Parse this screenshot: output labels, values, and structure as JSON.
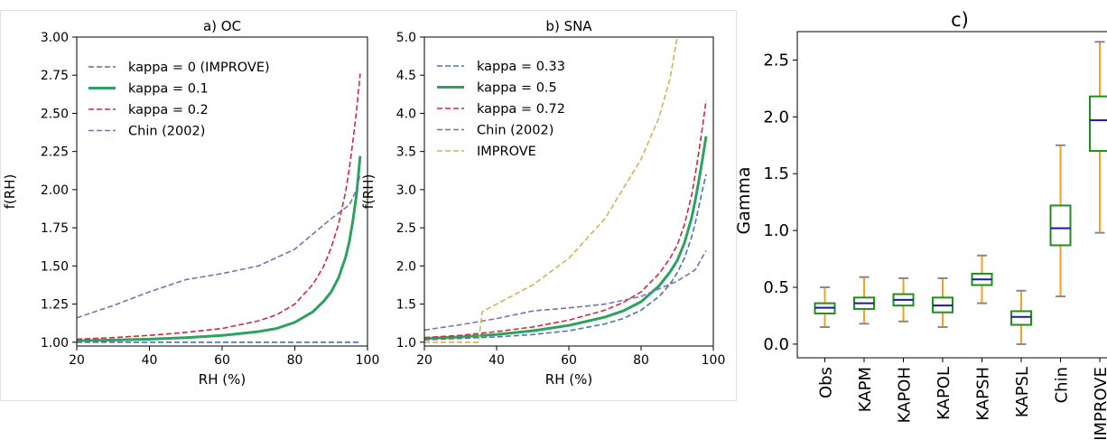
{
  "colors": {
    "blue": "#4c72b0",
    "green": "#2ca25f",
    "red": "#d62739",
    "purple": "#7b6fb5",
    "gold": "#d4b25c",
    "box": "#1e8f1e",
    "median": "#1a1a99",
    "whisker": "#f5a01e",
    "cap": "#888888"
  },
  "chart_data": [
    {
      "type": "line",
      "title": "a) OC",
      "xlabel": "RH (%)",
      "ylabel": "f(RH)",
      "xlim": [
        20,
        100
      ],
      "ylim": [
        0.975,
        3.0
      ],
      "xticks": [
        20,
        40,
        60,
        80,
        100
      ],
      "xtick_labels": [
        "20",
        "40",
        "60",
        "80",
        "100"
      ],
      "yticks": [
        1.0,
        1.25,
        1.5,
        1.75,
        2.0,
        2.25,
        2.5,
        2.75,
        3.0
      ],
      "ytick_labels": [
        "1.00",
        "1.25",
        "1.50",
        "1.75",
        "2.00",
        "2.25",
        "2.50",
        "2.75",
        "3.00"
      ],
      "grid": false,
      "legend_position": "top-left",
      "series": [
        {
          "name": "kappa = 0 (IMPROVE)",
          "color": "blue",
          "style": "dashed",
          "x": [
            20,
            98
          ],
          "y": [
            1.0,
            1.0
          ]
        },
        {
          "name": "kappa = 0.1",
          "color": "green",
          "style": "solid",
          "x": [
            20,
            30,
            40,
            50,
            60,
            70,
            75,
            80,
            85,
            88,
            90,
            92,
            94,
            95,
            96,
            97,
            98
          ],
          "y": [
            1.01,
            1.014,
            1.02,
            1.03,
            1.044,
            1.07,
            1.09,
            1.13,
            1.2,
            1.27,
            1.33,
            1.42,
            1.56,
            1.66,
            1.8,
            1.97,
            2.22
          ]
        },
        {
          "name": "kappa = 0.2",
          "color": "red",
          "style": "dashed",
          "x": [
            20,
            30,
            40,
            50,
            60,
            70,
            75,
            80,
            85,
            88,
            90,
            92,
            94,
            95,
            96,
            97,
            98
          ],
          "y": [
            1.02,
            1.03,
            1.045,
            1.065,
            1.09,
            1.14,
            1.18,
            1.25,
            1.38,
            1.5,
            1.62,
            1.77,
            1.99,
            2.14,
            2.32,
            2.52,
            2.76
          ]
        },
        {
          "name": "Chin (2002)",
          "color": "purple",
          "style": "dashed",
          "x": [
            20,
            30,
            40,
            50,
            60,
            70,
            80,
            90,
            95,
            97,
            98
          ],
          "y": [
            1.16,
            1.24,
            1.33,
            1.41,
            1.45,
            1.5,
            1.61,
            1.81,
            1.9,
            2.0,
            2.1
          ]
        }
      ]
    },
    {
      "type": "line",
      "title": "b) SNA",
      "xlabel": "RH (%)",
      "ylabel": "f(RH)",
      "xlim": [
        20,
        100
      ],
      "ylim": [
        0.95,
        5.0
      ],
      "xticks": [
        20,
        40,
        60,
        80,
        100
      ],
      "xtick_labels": [
        "20",
        "40",
        "60",
        "80",
        "100"
      ],
      "yticks": [
        1.0,
        1.5,
        2.0,
        2.5,
        3.0,
        3.5,
        4.0,
        4.5,
        5.0
      ],
      "ytick_labels": [
        "1.0",
        "1.5",
        "2.0",
        "2.5",
        "3.0",
        "3.5",
        "4.0",
        "4.5",
        "5.0"
      ],
      "grid": false,
      "legend_position": "top-left",
      "series": [
        {
          "name": "kappa = 0.33",
          "color": "blue",
          "style": "dashed",
          "x": [
            20,
            30,
            40,
            50,
            60,
            70,
            75,
            80,
            85,
            88,
            90,
            92,
            94,
            95,
            96,
            97,
            98
          ],
          "y": [
            1.03,
            1.05,
            1.07,
            1.1,
            1.15,
            1.24,
            1.31,
            1.42,
            1.6,
            1.76,
            1.91,
            2.1,
            2.38,
            2.56,
            2.78,
            3.0,
            3.2
          ]
        },
        {
          "name": "kappa = 0.5",
          "color": "green",
          "style": "solid",
          "x": [
            20,
            30,
            40,
            50,
            60,
            70,
            75,
            80,
            85,
            88,
            90,
            92,
            94,
            95,
            96,
            97,
            98
          ],
          "y": [
            1.05,
            1.07,
            1.1,
            1.15,
            1.22,
            1.33,
            1.41,
            1.53,
            1.74,
            1.92,
            2.07,
            2.3,
            2.63,
            2.86,
            3.12,
            3.4,
            3.7
          ]
        },
        {
          "name": "kappa = 0.72",
          "color": "red",
          "style": "dashed",
          "x": [
            20,
            30,
            40,
            50,
            60,
            70,
            75,
            80,
            85,
            88,
            90,
            92,
            94,
            95,
            96,
            97,
            98
          ],
          "y": [
            1.06,
            1.09,
            1.14,
            1.2,
            1.29,
            1.42,
            1.52,
            1.66,
            1.9,
            2.1,
            2.27,
            2.54,
            2.93,
            3.2,
            3.5,
            3.82,
            4.17
          ]
        },
        {
          "name": "Chin (2002)",
          "color": "purple",
          "style": "dashed",
          "x": [
            20,
            30,
            40,
            50,
            60,
            70,
            80,
            90,
            95,
            98
          ],
          "y": [
            1.16,
            1.23,
            1.31,
            1.41,
            1.45,
            1.5,
            1.6,
            1.8,
            1.95,
            2.2
          ]
        },
        {
          "name": "IMPROVE",
          "color": "gold",
          "style": "dashed",
          "x": [
            20,
            35,
            36,
            40,
            50,
            60,
            70,
            80,
            85,
            88,
            90
          ],
          "y": [
            1.0,
            1.0,
            1.4,
            1.5,
            1.75,
            2.1,
            2.62,
            3.4,
            3.95,
            4.45,
            5.0
          ]
        }
      ]
    },
    {
      "type": "box",
      "title": "c)",
      "xlabel": "",
      "ylabel": "Gamma",
      "ylim": [
        -0.12,
        2.75
      ],
      "yticks": [
        0.0,
        0.5,
        1.0,
        1.5,
        2.0,
        2.5
      ],
      "ytick_labels": [
        "0.0",
        "0.5",
        "1.0",
        "1.5",
        "2.0",
        "2.5"
      ],
      "grid": false,
      "categories": [
        "Obs",
        "KAPM",
        "KAPOH",
        "KAPOL",
        "KAPSH",
        "KAPSL",
        "Chin",
        "IMPROVE"
      ],
      "boxes": [
        {
          "whislo": 0.15,
          "q1": 0.27,
          "med": 0.32,
          "q3": 0.36,
          "whishi": 0.5
        },
        {
          "whislo": 0.18,
          "q1": 0.31,
          "med": 0.36,
          "q3": 0.41,
          "whishi": 0.59
        },
        {
          "whislo": 0.2,
          "q1": 0.34,
          "med": 0.39,
          "q3": 0.44,
          "whishi": 0.58
        },
        {
          "whislo": 0.15,
          "q1": 0.28,
          "med": 0.34,
          "q3": 0.41,
          "whishi": 0.58
        },
        {
          "whislo": 0.36,
          "q1": 0.52,
          "med": 0.57,
          "q3": 0.62,
          "whishi": 0.78
        },
        {
          "whislo": 0.0,
          "q1": 0.17,
          "med": 0.24,
          "q3": 0.29,
          "whishi": 0.47
        },
        {
          "whislo": 0.42,
          "q1": 0.87,
          "med": 1.02,
          "q3": 1.22,
          "whishi": 1.75
        },
        {
          "whislo": 0.98,
          "q1": 1.7,
          "med": 1.97,
          "q3": 2.18,
          "whishi": 2.66
        }
      ]
    }
  ]
}
